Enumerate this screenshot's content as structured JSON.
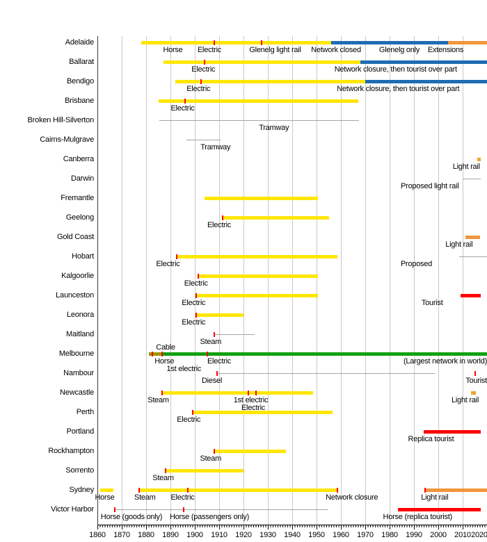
{
  "chart_data": {
    "type": "bar",
    "subtype": "timeline-gantt",
    "title": "",
    "xlabel": "",
    "ylabel": "",
    "legend": "none",
    "grid": "vertical-decade-gridlines",
    "axis": {
      "year_min": 1860,
      "year_max": 2020,
      "decade_step": 10,
      "tick_labels": [
        "1860",
        "1870",
        "1880",
        "1890",
        "1900",
        "1910",
        "1920",
        "1930",
        "1940",
        "1950",
        "1960",
        "1970",
        "1980",
        "1990",
        "2000",
        "2010",
        "2020"
      ]
    },
    "colors": {
      "operating_yellow": "#FFE606",
      "closure_blue": "#1F6CB5",
      "light_rail_orange": "#F2953C",
      "light_rail_orange_square": "#EFA32F",
      "operating_green": "#12A012",
      "horse_cable_olive": "#A09600",
      "tourist_red": "#FF0000",
      "minor_line_gray": "#A5A5A5",
      "event_tick_red": "#FF0000",
      "gridline_gray": "#C8C8C8"
    },
    "rows": [
      {
        "label": "Adelaide",
        "segments": [
          {
            "from": 1878,
            "to": 1956,
            "color": "operating_yellow"
          },
          {
            "from": 1956,
            "to": 2004,
            "color": "closure_blue"
          },
          {
            "from": 2004,
            "to": 2020,
            "color": "light_rail_orange"
          }
        ],
        "ticks": [
          1908,
          1927.5
        ],
        "annotations": [
          {
            "text": "Horse",
            "year": 1891
          },
          {
            "text": "Electric",
            "year": 1906
          },
          {
            "text": "Glenelg light rail",
            "year": 1933
          },
          {
            "text": "Network closed",
            "year": 1958
          },
          {
            "text": "Glenelg only",
            "year": 1984
          },
          {
            "text": "Extensions",
            "year": 2003
          }
        ]
      },
      {
        "label": "Ballarat",
        "segments": [
          {
            "from": 1887,
            "to": 1968,
            "color": "operating_yellow"
          },
          {
            "from": 1968,
            "to": 2020,
            "color": "closure_blue"
          }
        ],
        "ticks": [
          1904
        ],
        "annotations": [
          {
            "text": "Electric",
            "year": 1903.5
          },
          {
            "text": "Network closure, then tourist over part",
            "year": 1982.5
          }
        ]
      },
      {
        "label": "Bendigo",
        "segments": [
          {
            "from": 1892,
            "to": 1970,
            "color": "operating_yellow"
          },
          {
            "from": 1970,
            "to": 2020,
            "color": "closure_blue"
          }
        ],
        "ticks": [
          1902.5
        ],
        "annotations": [
          {
            "text": "Electric",
            "year": 1901.5
          },
          {
            "text": "Network closure, then tourist over part",
            "year": 1983.5
          }
        ]
      },
      {
        "label": "Brisbane",
        "segments": [
          {
            "from": 1885,
            "to": 1967,
            "color": "operating_yellow"
          }
        ],
        "ticks": [
          1896
        ],
        "annotations": [
          {
            "text": "Electric",
            "year": 1895
          }
        ]
      },
      {
        "label": "Broken Hill-Silverton",
        "segments": [
          {
            "from": 1885.5,
            "to": 1967.5,
            "color": "minor_line_gray"
          }
        ],
        "ticks": [],
        "annotations": [
          {
            "text": "Tramway",
            "year": 1932.5
          }
        ]
      },
      {
        "label": "Cairns-Mulgrave",
        "segments": [
          {
            "from": 1896.5,
            "to": 1910.5,
            "color": "minor_line_gray"
          }
        ],
        "ticks": [],
        "annotations": [
          {
            "text": "Tramway",
            "year": 1908.5
          }
        ]
      },
      {
        "label": "Canberra",
        "segments": [
          {
            "from": 2016,
            "to": 2017.5,
            "color": "light_rail_orange_square"
          }
        ],
        "ticks": [],
        "annotations": [
          {
            "text": "Light rail",
            "year": 2011.5
          }
        ]
      },
      {
        "label": "Darwin",
        "segments": [
          {
            "from": 2010,
            "to": 2017.5,
            "color": "minor_line_gray"
          }
        ],
        "ticks": [],
        "annotations": [
          {
            "text": "Proposed light rail",
            "year": 1996.5
          }
        ]
      },
      {
        "label": "Fremantle",
        "segments": [
          {
            "from": 1904,
            "to": 1950.5,
            "color": "operating_yellow"
          }
        ],
        "ticks": [],
        "annotations": []
      },
      {
        "label": "Geelong",
        "segments": [
          {
            "from": 1911.5,
            "to": 1955,
            "color": "operating_yellow"
          }
        ],
        "ticks": [
          1911.5
        ],
        "annotations": [
          {
            "text": "Electric",
            "year": 1910
          }
        ]
      },
      {
        "label": "Gold Coast",
        "segments": [
          {
            "from": 2011,
            "to": 2017,
            "color": "light_rail_orange"
          }
        ],
        "ticks": [],
        "annotations": [
          {
            "text": "Light rail",
            "year": 2008.5
          }
        ]
      },
      {
        "label": "Hobart",
        "segments": [
          {
            "from": 1892.5,
            "to": 1958.5,
            "color": "operating_yellow"
          },
          {
            "from": 2008.5,
            "to": 2020,
            "color": "minor_line_gray"
          }
        ],
        "ticks": [
          1892.5
        ],
        "annotations": [
          {
            "text": "Electric",
            "year": 1889
          },
          {
            "text": "Proposed",
            "year": 1991
          }
        ]
      },
      {
        "label": "Kalgoorlie",
        "segments": [
          {
            "from": 1901.5,
            "to": 1950.5,
            "color": "operating_yellow"
          }
        ],
        "ticks": [
          1901.5
        ],
        "annotations": [
          {
            "text": "Electric",
            "year": 1900.5
          }
        ]
      },
      {
        "label": "Launceston",
        "segments": [
          {
            "from": 1900.5,
            "to": 1950.5,
            "color": "operating_yellow"
          },
          {
            "from": 2009,
            "to": 2017.5,
            "color": "tourist_red"
          }
        ],
        "ticks": [
          1900.5
        ],
        "annotations": [
          {
            "text": "Electric",
            "year": 1899.5
          },
          {
            "text": "Tourist",
            "year": 1997.5
          }
        ]
      },
      {
        "label": "Leonora",
        "segments": [
          {
            "from": 1900.5,
            "to": 1920,
            "color": "operating_yellow"
          }
        ],
        "ticks": [
          1900.5
        ],
        "annotations": [
          {
            "text": "Electric",
            "year": 1899.5
          }
        ]
      },
      {
        "label": "Maitland",
        "segments": [
          {
            "from": 1908,
            "to": 1924.5,
            "color": "minor_line_gray"
          }
        ],
        "ticks": [
          1908
        ],
        "annotations": [
          {
            "text": "Steam",
            "year": 1906.5
          }
        ]
      },
      {
        "label": "Melbourne",
        "segments": [
          {
            "from": 1881,
            "to": 1886.5,
            "color": "horse_cable_olive"
          },
          {
            "from": 1886.5,
            "to": 2020,
            "color": "operating_green"
          }
        ],
        "ticks": [
          1882.5,
          1886.5,
          1905
        ],
        "annotations": [
          {
            "text": "Cable",
            "year": 1888,
            "above": true
          },
          {
            "text": "Horse",
            "year": 1887.5
          },
          {
            "text": "1st electric",
            "year": 1895.5,
            "row2": true
          },
          {
            "text": "Electric",
            "year": 1910
          },
          {
            "text": "(Largest network in world)",
            "year": 2020,
            "align": "right"
          }
        ]
      },
      {
        "label": "Nambour",
        "segments": [
          {
            "from": 1909,
            "to": 1998.5,
            "color": "minor_line_gray"
          }
        ],
        "ticks": [
          1909,
          2015
        ],
        "annotations": [
          {
            "text": "Diesel",
            "year": 1907
          },
          {
            "text": "Tourist",
            "year": 2020,
            "align": "right"
          }
        ]
      },
      {
        "label": "Newcastle",
        "segments": [
          {
            "from": 1886.5,
            "to": 1948.5,
            "color": "operating_yellow"
          },
          {
            "from": 2013.5,
            "to": 2015.5,
            "color": "light_rail_orange_square"
          }
        ],
        "ticks": [
          1886.5,
          1922,
          1925
        ],
        "annotations": [
          {
            "text": "Steam",
            "year": 1885
          },
          {
            "text": "1st electric",
            "year": 1923
          },
          {
            "text": "Electric",
            "year": 1924,
            "row2": true
          },
          {
            "text": "Light rail",
            "year": 2011
          }
        ]
      },
      {
        "label": "Perth",
        "segments": [
          {
            "from": 1899,
            "to": 1956.5,
            "color": "operating_yellow"
          }
        ],
        "ticks": [
          1899
        ],
        "annotations": [
          {
            "text": "Electric",
            "year": 1897.5
          }
        ]
      },
      {
        "label": "Portland",
        "segments": [
          {
            "from": 1994,
            "to": 2017.5,
            "color": "tourist_red"
          }
        ],
        "ticks": [],
        "annotations": [
          {
            "text": "Replica tourist",
            "year": 1997
          }
        ]
      },
      {
        "label": "Rockhampton",
        "segments": [
          {
            "from": 1908,
            "to": 1937.5,
            "color": "operating_yellow"
          }
        ],
        "ticks": [
          1908
        ],
        "annotations": [
          {
            "text": "Steam",
            "year": 1906.5
          }
        ]
      },
      {
        "label": "Sorrento",
        "segments": [
          {
            "from": 1888,
            "to": 1920,
            "color": "operating_yellow"
          }
        ],
        "ticks": [
          1888
        ],
        "annotations": [
          {
            "text": "Steam",
            "year": 1887
          }
        ]
      },
      {
        "label": "Sydney",
        "segments": [
          {
            "from": 1861,
            "to": 1866.5,
            "color": "operating_yellow"
          },
          {
            "from": 1877,
            "to": 1958.5,
            "color": "operating_yellow"
          },
          {
            "from": 1994.5,
            "to": 2020,
            "color": "light_rail_orange"
          }
        ],
        "ticks": [
          1877,
          1897,
          1958.5,
          1994.5
        ],
        "annotations": [
          {
            "text": "Horse",
            "year": 1863
          },
          {
            "text": "Steam",
            "year": 1879.5
          },
          {
            "text": "Electric",
            "year": 1895
          },
          {
            "text": "Network closure",
            "year": 1964.5
          },
          {
            "text": "Light rail",
            "year": 1998.5
          }
        ]
      },
      {
        "label": "Victor Harbor",
        "segments": [
          {
            "from": 1867,
            "to": 1954.5,
            "color": "minor_line_gray"
          },
          {
            "from": 1983.5,
            "to": 2017.5,
            "color": "tourist_red"
          }
        ],
        "ticks": [
          1867,
          1895.5
        ],
        "annotations": [
          {
            "text": "Horse (goods only)",
            "year": 1874
          },
          {
            "text": "Horse (passengers only)",
            "year": 1906
          },
          {
            "text": "Horse (replica tourist)",
            "year": 1991.5
          }
        ]
      }
    ]
  }
}
